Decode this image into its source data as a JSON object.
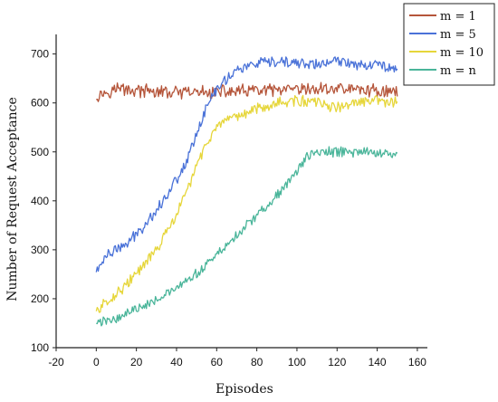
{
  "chart_data": {
    "type": "line",
    "title": "",
    "xlabel": "Episodes",
    "ylabel": "Number of Request Acceptance",
    "xlim": [
      -20,
      165
    ],
    "ylim": [
      100,
      740
    ],
    "xticks": [
      -20,
      0,
      20,
      40,
      60,
      80,
      100,
      120,
      140,
      160
    ],
    "yticks": [
      100,
      200,
      300,
      400,
      500,
      600,
      700
    ],
    "grid": false,
    "legend_position": "top-right",
    "series": [
      {
        "name": "m = 1",
        "color": "#b5553a",
        "anchors": [
          [
            0,
            615
          ],
          [
            10,
            630
          ],
          [
            20,
            625
          ],
          [
            40,
            620
          ],
          [
            60,
            622
          ],
          [
            80,
            625
          ],
          [
            100,
            625
          ],
          [
            120,
            630
          ],
          [
            140,
            625
          ],
          [
            150,
            622
          ]
        ],
        "noise": 12
      },
      {
        "name": "m = 5",
        "color": "#4a72d8",
        "anchors": [
          [
            0,
            255
          ],
          [
            5,
            290
          ],
          [
            15,
            310
          ],
          [
            25,
            355
          ],
          [
            35,
            410
          ],
          [
            45,
            480
          ],
          [
            50,
            540
          ],
          [
            55,
            590
          ],
          [
            60,
            630
          ],
          [
            65,
            650
          ],
          [
            70,
            668
          ],
          [
            80,
            680
          ],
          [
            90,
            682
          ],
          [
            100,
            682
          ],
          [
            110,
            678
          ],
          [
            120,
            685
          ],
          [
            130,
            680
          ],
          [
            140,
            678
          ],
          [
            150,
            672
          ]
        ],
        "noise": 10
      },
      {
        "name": "m = 10",
        "color": "#e6d63a",
        "anchors": [
          [
            0,
            175
          ],
          [
            10,
            210
          ],
          [
            20,
            250
          ],
          [
            30,
            300
          ],
          [
            40,
            370
          ],
          [
            45,
            420
          ],
          [
            50,
            470
          ],
          [
            55,
            520
          ],
          [
            60,
            550
          ],
          [
            70,
            570
          ],
          [
            80,
            590
          ],
          [
            90,
            600
          ],
          [
            100,
            605
          ],
          [
            110,
            600
          ],
          [
            120,
            590
          ],
          [
            130,
            600
          ],
          [
            140,
            605
          ],
          [
            150,
            600
          ]
        ],
        "noise": 10
      },
      {
        "name": "m = n",
        "color": "#4ab59a",
        "anchors": [
          [
            0,
            150
          ],
          [
            10,
            160
          ],
          [
            20,
            180
          ],
          [
            30,
            200
          ],
          [
            40,
            220
          ],
          [
            50,
            250
          ],
          [
            60,
            290
          ],
          [
            70,
            330
          ],
          [
            80,
            370
          ],
          [
            90,
            410
          ],
          [
            100,
            460
          ],
          [
            105,
            490
          ],
          [
            110,
            500
          ],
          [
            120,
            500
          ],
          [
            130,
            500
          ],
          [
            140,
            500
          ],
          [
            150,
            490
          ]
        ],
        "noise": 9
      }
    ]
  }
}
